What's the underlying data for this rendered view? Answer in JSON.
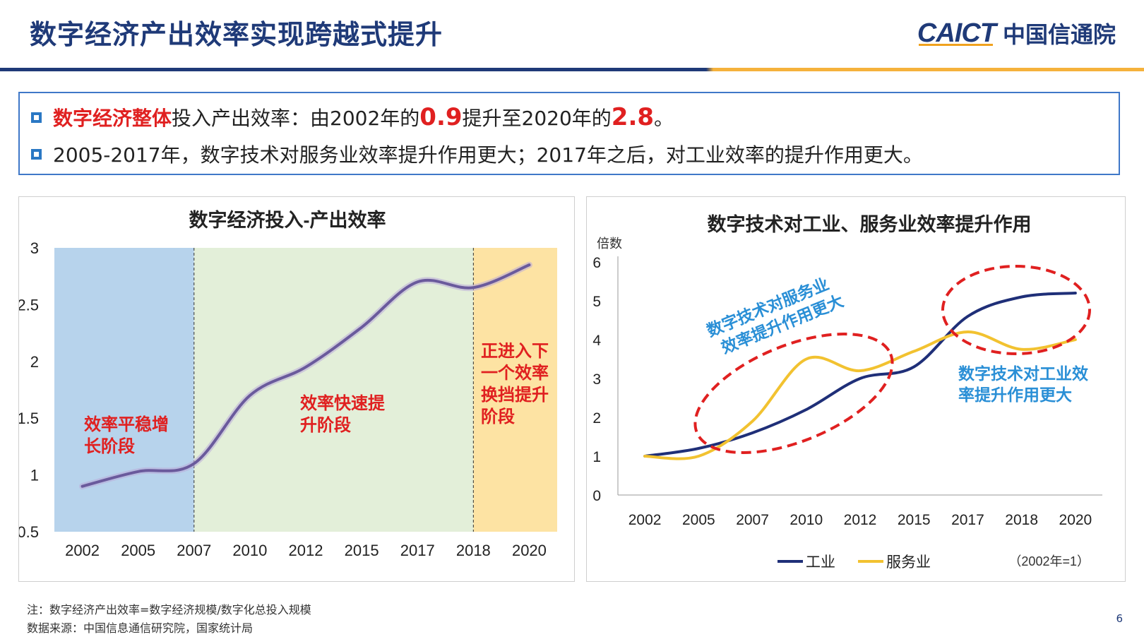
{
  "header": {
    "title": "数字经济产出效率实现跨越式提升",
    "logo_en": "CAICT",
    "logo_cn": "中国信通院"
  },
  "summary": {
    "b1_highlight": "数字经济整体",
    "b1_a": "投入产出效率：由2002年的",
    "b1_v1": "0.9",
    "b1_b": "提升至2020年的",
    "b1_v2": "2.8",
    "b1_end": "。",
    "b2": "2005-2017年，数字技术对服务业效率提升作用更大；2017年之后，对工业效率的提升作用更大。"
  },
  "watermark": {
    "en": "CAICT",
    "cn": "中国信通院"
  },
  "chart_data": [
    {
      "type": "line",
      "title": "数字经济投入-产出效率",
      "categories": [
        "2002",
        "2005",
        "2007",
        "2010",
        "2012",
        "2015",
        "2017",
        "2018",
        "2020"
      ],
      "series": [
        {
          "values": [
            0.9,
            1.03,
            1.1,
            1.7,
            1.95,
            2.3,
            2.7,
            2.65,
            2.85
          ]
        }
      ],
      "ylim": [
        0.5,
        3
      ],
      "yticks": [
        "0.5",
        "1",
        "1.5",
        "2",
        "2.5",
        "3"
      ],
      "phases": [
        {
          "label": "效率平稳增长阶段",
          "lines": [
            "效率平稳增",
            "长阶段"
          ],
          "color": "#b7d3ec",
          "from": "2002",
          "to": "2007"
        },
        {
          "label": "效率快速提升阶段",
          "lines": [
            "效率快速提",
            "升阶段"
          ],
          "color": "#e3efd9",
          "from": "2007",
          "to": "2018"
        },
        {
          "label": "正进入下一个效率换挡提升阶段",
          "lines": [
            "正进入下",
            "一个效率",
            "换挡提升",
            "阶段"
          ],
          "color": "#fde3a3",
          "from": "2018",
          "to": "2020"
        }
      ],
      "line_color": "#6a5a9c",
      "annotation_color": "#e02020"
    },
    {
      "type": "line",
      "title": "数字技术对工业、服务业效率提升作用",
      "ylabel": "倍数",
      "categories": [
        "2002",
        "2005",
        "2007",
        "2010",
        "2012",
        "2015",
        "2017",
        "2018",
        "2020"
      ],
      "series": [
        {
          "name": "工业",
          "color": "#1f2f78",
          "values": [
            1.0,
            1.2,
            1.6,
            2.2,
            3.0,
            3.3,
            4.6,
            5.1,
            5.2
          ]
        },
        {
          "name": "服务业",
          "color": "#f2c230",
          "values": [
            1.0,
            1.0,
            1.9,
            3.5,
            3.2,
            3.7,
            4.2,
            3.75,
            4.0
          ]
        }
      ],
      "ylim": [
        0,
        6
      ],
      "yticks": [
        "0",
        "1",
        "2",
        "3",
        "4",
        "5",
        "6"
      ],
      "annotations": [
        {
          "text": "数字技术对服务业效率提升作用更大",
          "lines": [
            "数字技术对服务业",
            "效率提升作用更大"
          ],
          "color": "#2a8fd6"
        },
        {
          "text": "数字技术对工业效率提升作用更大",
          "lines": [
            "数字技术对工业效",
            "率提升作用更大"
          ],
          "color": "#2a8fd6"
        }
      ],
      "ellipse_color": "#e02020",
      "base_note": "（2002年=1）"
    }
  ],
  "notes": {
    "note1": "注：数字经济产出效率=数字经济规模/数字化总投入规模",
    "note2": "数据来源：中国信息通信研究院，国家统计局"
  },
  "page_number": "6"
}
